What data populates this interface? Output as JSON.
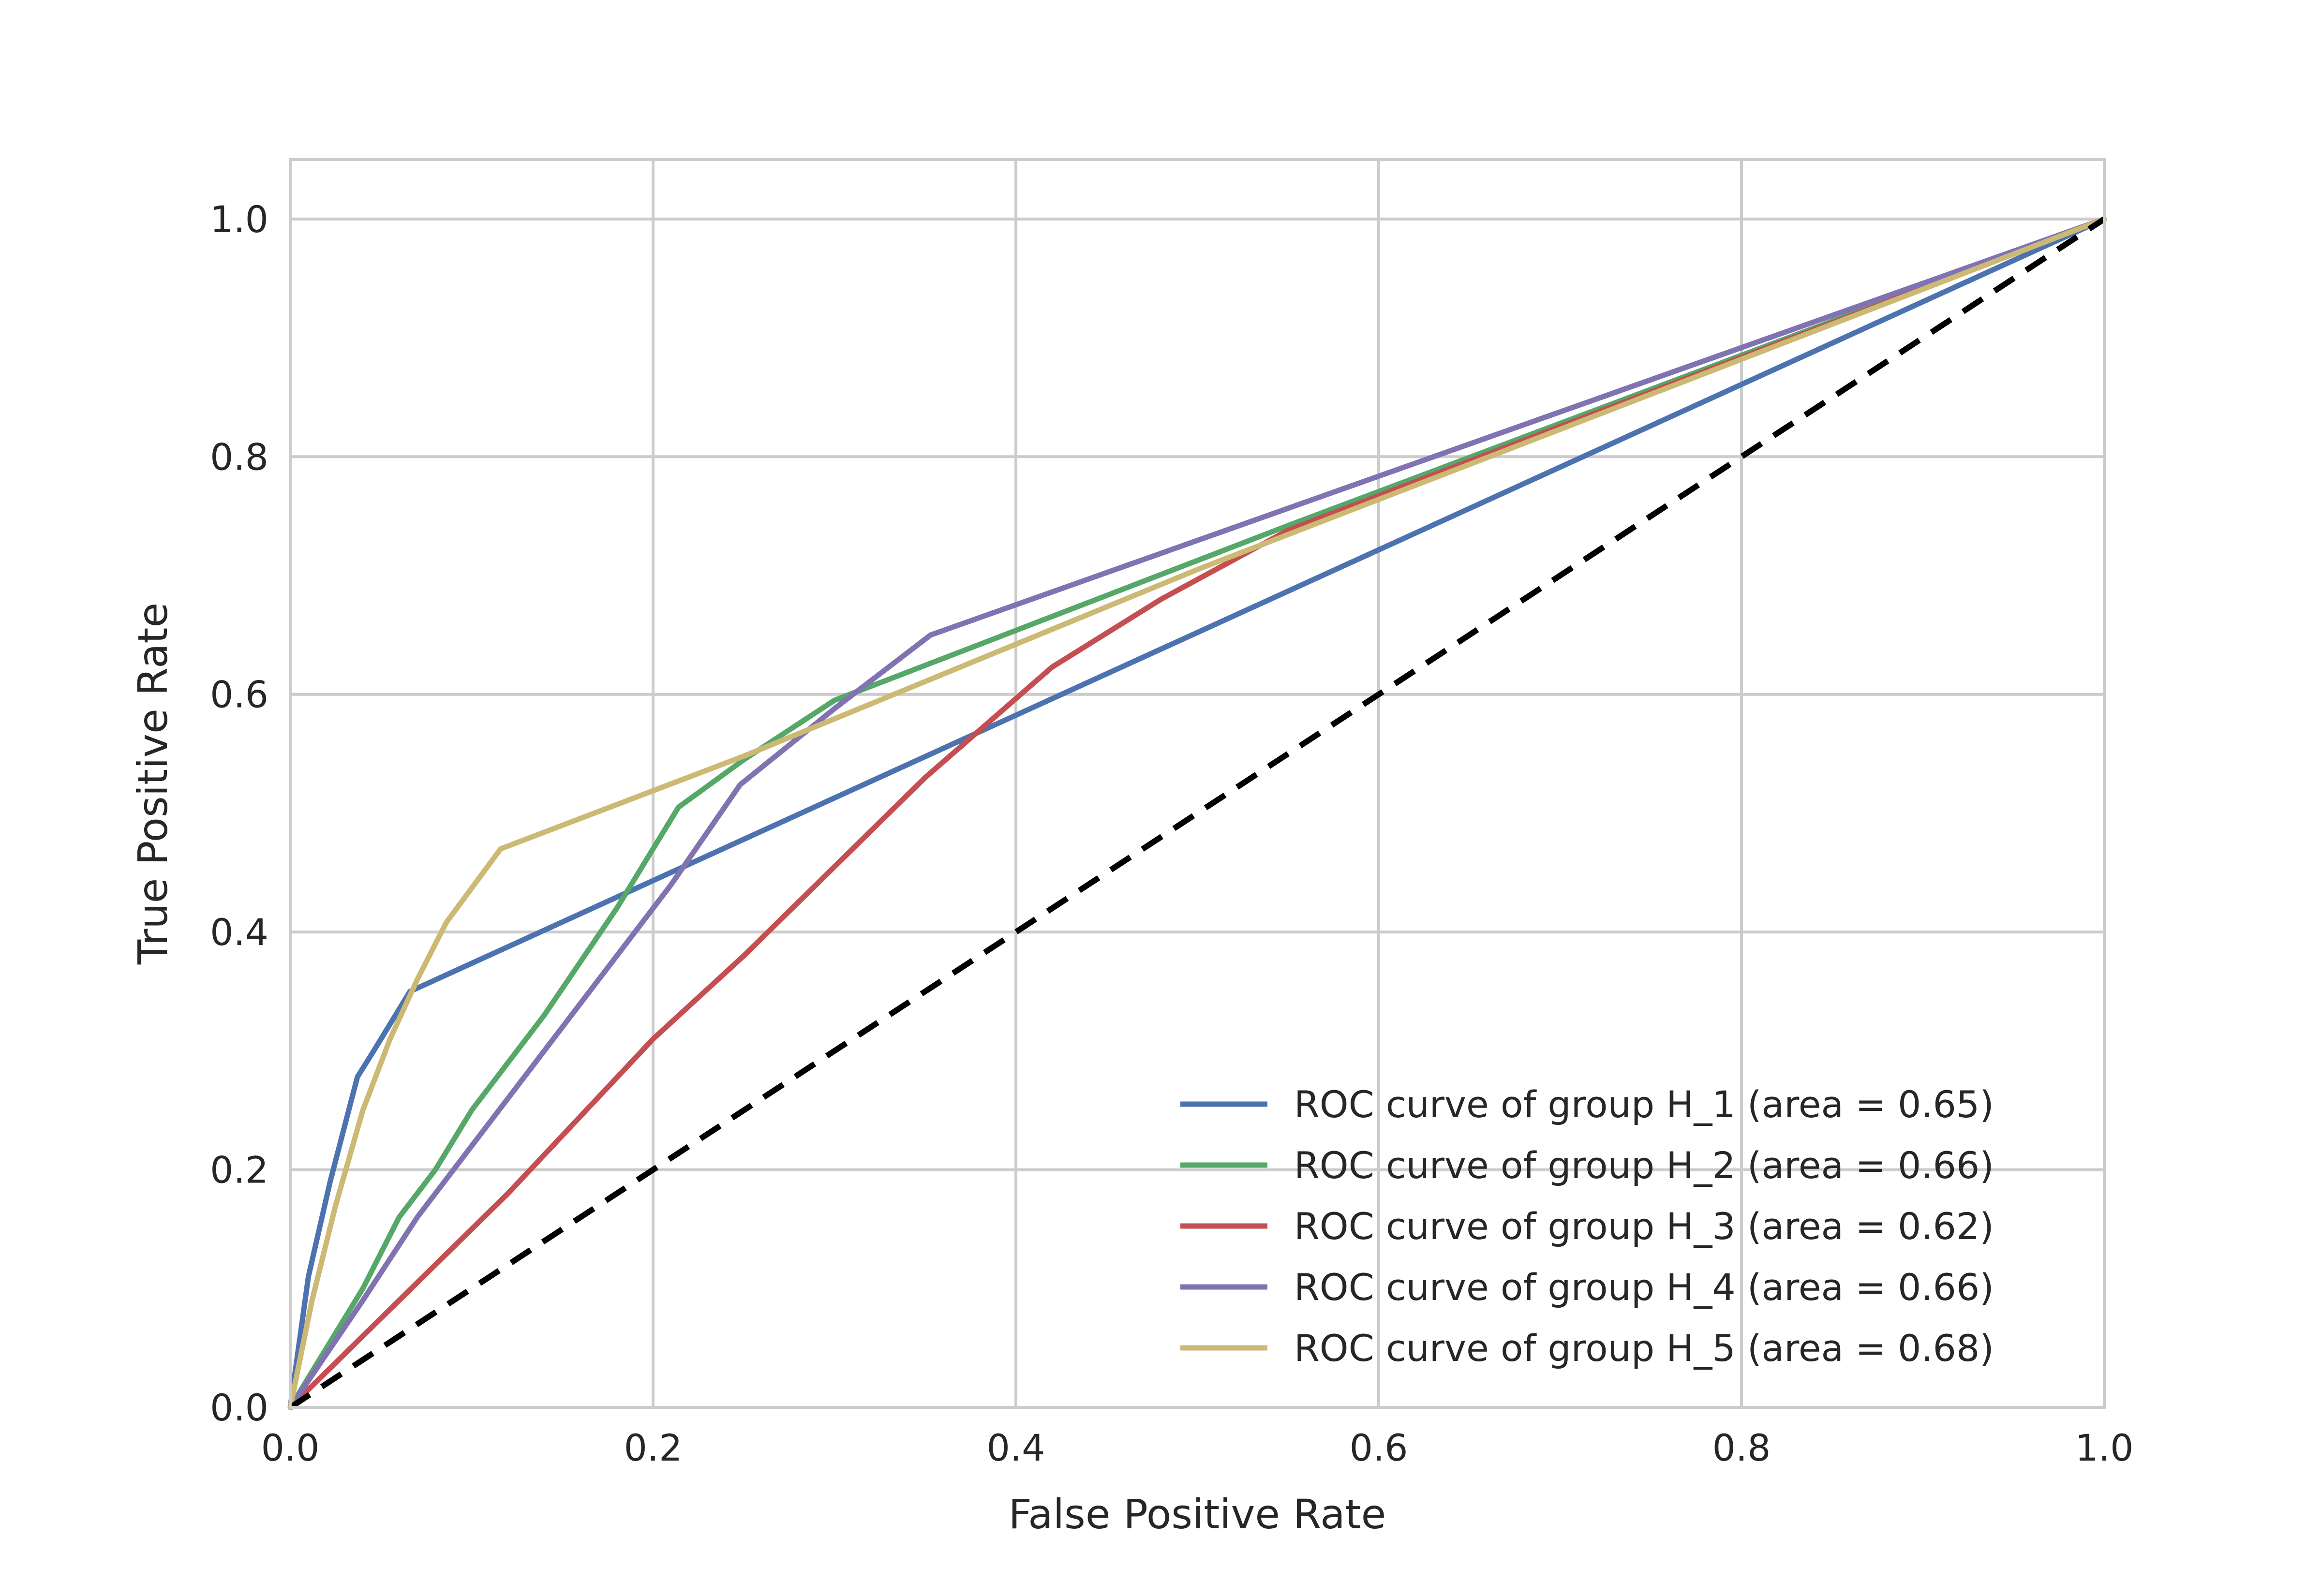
{
  "chart_data": {
    "type": "line",
    "title": "",
    "xlabel": "False Positive Rate",
    "ylabel": "True Positive Rate",
    "xlim": [
      0.0,
      1.0
    ],
    "ylim": [
      0.0,
      1.05
    ],
    "xticks": [
      0.0,
      0.2,
      0.4,
      0.6,
      0.8,
      1.0
    ],
    "yticks": [
      0.0,
      0.2,
      0.4,
      0.6,
      0.8,
      1.0
    ],
    "xtick_labels": [
      "0.0",
      "0.2",
      "0.4",
      "0.6",
      "0.8",
      "1.0"
    ],
    "ytick_labels": [
      "0.0",
      "0.2",
      "0.4",
      "0.6",
      "0.8",
      "1.0"
    ],
    "grid": true,
    "legend_position": "lower-right",
    "series": [
      {
        "name": "ROC curve of group H_1 (area = 0.65)",
        "color": "#4c72b0",
        "points": [
          [
            0.0,
            0.0
          ],
          [
            0.01,
            0.11
          ],
          [
            0.022,
            0.19
          ],
          [
            0.037,
            0.278
          ],
          [
            0.046,
            0.3
          ],
          [
            0.066,
            0.35
          ],
          [
            1.0,
            1.0
          ]
        ]
      },
      {
        "name": "ROC curve of group H_2 (area = 0.66)",
        "color": "#55a868",
        "points": [
          [
            0.0,
            0.0
          ],
          [
            0.02,
            0.05
          ],
          [
            0.04,
            0.1
          ],
          [
            0.06,
            0.16
          ],
          [
            0.08,
            0.2
          ],
          [
            0.1,
            0.25
          ],
          [
            0.14,
            0.33
          ],
          [
            0.18,
            0.42
          ],
          [
            0.214,
            0.505
          ],
          [
            0.25,
            0.545
          ],
          [
            0.3,
            0.595
          ],
          [
            0.55,
            0.742
          ],
          [
            1.0,
            1.0
          ]
        ]
      },
      {
        "name": "ROC curve of group H_3 (area = 0.62)",
        "color": "#c44e52",
        "points": [
          [
            0.0,
            0.0
          ],
          [
            0.04,
            0.06
          ],
          [
            0.08,
            0.12
          ],
          [
            0.12,
            0.18
          ],
          [
            0.16,
            0.245
          ],
          [
            0.2,
            0.31
          ],
          [
            0.25,
            0.38
          ],
          [
            0.3,
            0.455
          ],
          [
            0.35,
            0.53
          ],
          [
            0.42,
            0.623
          ],
          [
            0.48,
            0.68
          ],
          [
            0.55,
            0.738
          ],
          [
            1.0,
            1.0
          ]
        ]
      },
      {
        "name": "ROC curve of group H_4 (area = 0.66)",
        "color": "#8172b2",
        "points": [
          [
            0.0,
            0.0
          ],
          [
            0.04,
            0.09
          ],
          [
            0.07,
            0.16
          ],
          [
            0.1,
            0.22
          ],
          [
            0.14,
            0.3
          ],
          [
            0.18,
            0.38
          ],
          [
            0.21,
            0.44
          ],
          [
            0.248,
            0.524
          ],
          [
            0.3,
            0.588
          ],
          [
            0.353,
            0.65
          ],
          [
            1.0,
            1.0
          ]
        ]
      },
      {
        "name": "ROC curve of group H_5 (area = 0.68)",
        "color": "#ccb974",
        "points": [
          [
            0.0,
            0.0
          ],
          [
            0.012,
            0.09
          ],
          [
            0.025,
            0.17
          ],
          [
            0.04,
            0.25
          ],
          [
            0.055,
            0.31
          ],
          [
            0.07,
            0.36
          ],
          [
            0.086,
            0.408
          ],
          [
            0.116,
            0.47
          ],
          [
            0.25,
            0.548
          ],
          [
            0.5,
            0.705
          ],
          [
            1.0,
            1.0
          ]
        ]
      }
    ],
    "reference_line": {
      "color": "#000000",
      "style": "dashed",
      "points": [
        [
          0.0,
          0.0
        ],
        [
          1.0,
          1.0
        ]
      ]
    }
  }
}
